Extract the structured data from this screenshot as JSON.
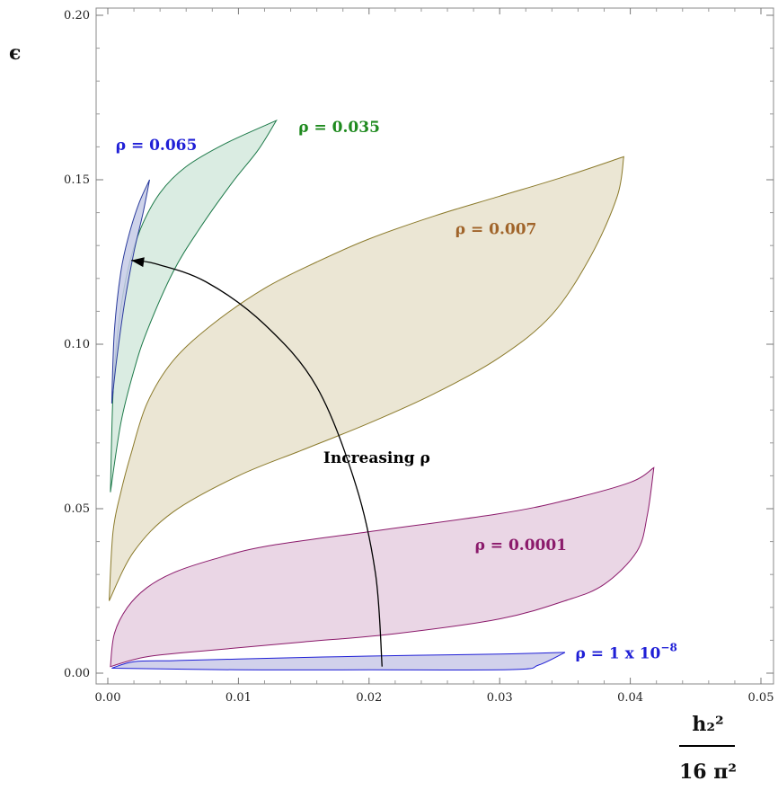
{
  "chart_data": {
    "type": "area",
    "xlim": [
      0,
      0.05
    ],
    "ylim": [
      0,
      0.2
    ],
    "x_ticks": [
      "0.00",
      "0.01",
      "0.02",
      "0.03",
      "0.04",
      "0.05"
    ],
    "y_ticks": [
      "0.00",
      "0.05",
      "0.10",
      "0.15",
      "0.20"
    ],
    "ylabel": "ϵ",
    "xlabel_num": "h₂²",
    "xlabel_den": "16 π²",
    "grid": false,
    "series": [
      {
        "name": "ρ = 1 x 10⁻⁸",
        "color": "#1f1fd6",
        "fill": "#c9c9e8",
        "upper": [
          [
            0.0003,
            0.0015
          ],
          [
            0.002,
            0.0035
          ],
          [
            0.005,
            0.0038
          ],
          [
            0.01,
            0.0043
          ],
          [
            0.02,
            0.0052
          ],
          [
            0.03,
            0.0058
          ],
          [
            0.035,
            0.0063
          ]
        ],
        "lower": [
          [
            0.0003,
            0.0015
          ],
          [
            0.01,
            0.001
          ],
          [
            0.02,
            0.001
          ],
          [
            0.031,
            0.0011
          ],
          [
            0.033,
            0.0025
          ],
          [
            0.035,
            0.0063
          ]
        ]
      },
      {
        "name": "ρ = 0.0001",
        "color": "#8b1a6b",
        "fill": "#e6cfe0",
        "upper": [
          [
            0.0002,
            0.002
          ],
          [
            0.0005,
            0.012
          ],
          [
            0.0015,
            0.02
          ],
          [
            0.003,
            0.026
          ],
          [
            0.005,
            0.0305
          ],
          [
            0.008,
            0.0345
          ],
          [
            0.012,
            0.0385
          ],
          [
            0.02,
            0.043
          ],
          [
            0.03,
            0.0485
          ],
          [
            0.035,
            0.0525
          ],
          [
            0.04,
            0.058
          ],
          [
            0.0418,
            0.0625
          ]
        ],
        "lower": [
          [
            0.0002,
            0.002
          ],
          [
            0.003,
            0.005
          ],
          [
            0.008,
            0.007
          ],
          [
            0.015,
            0.0095
          ],
          [
            0.022,
            0.012
          ],
          [
            0.03,
            0.0165
          ],
          [
            0.035,
            0.022
          ],
          [
            0.038,
            0.027
          ],
          [
            0.0405,
            0.037
          ],
          [
            0.0413,
            0.048
          ],
          [
            0.0418,
            0.0625
          ]
        ]
      },
      {
        "name": "ρ = 0.007",
        "color": "#8b7a2b",
        "fill": "#e8e2cc",
        "upper": [
          [
            0.0001,
            0.022
          ],
          [
            0.0004,
            0.043
          ],
          [
            0.001,
            0.055
          ],
          [
            0.0018,
            0.067
          ],
          [
            0.003,
            0.082
          ],
          [
            0.005,
            0.095
          ],
          [
            0.008,
            0.106
          ],
          [
            0.012,
            0.117
          ],
          [
            0.016,
            0.125
          ],
          [
            0.02,
            0.132
          ],
          [
            0.025,
            0.139
          ],
          [
            0.03,
            0.145
          ],
          [
            0.035,
            0.151
          ],
          [
            0.0395,
            0.157
          ]
        ],
        "lower": [
          [
            0.0001,
            0.022
          ],
          [
            0.002,
            0.037
          ],
          [
            0.005,
            0.049
          ],
          [
            0.01,
            0.06
          ],
          [
            0.015,
            0.068
          ],
          [
            0.02,
            0.076
          ],
          [
            0.025,
            0.085
          ],
          [
            0.03,
            0.096
          ],
          [
            0.034,
            0.109
          ],
          [
            0.037,
            0.127
          ],
          [
            0.039,
            0.145
          ],
          [
            0.0395,
            0.157
          ]
        ]
      },
      {
        "name": "ρ = 0.035",
        "color": "#1e7a4a",
        "fill": "#d3e9dd",
        "upper": [
          [
            0.0002,
            0.055
          ],
          [
            0.0004,
            0.085
          ],
          [
            0.0008,
            0.105
          ],
          [
            0.0015,
            0.122
          ],
          [
            0.0025,
            0.135
          ],
          [
            0.004,
            0.146
          ],
          [
            0.006,
            0.154
          ],
          [
            0.009,
            0.161
          ],
          [
            0.0129,
            0.168
          ]
        ],
        "lower": [
          [
            0.0002,
            0.055
          ],
          [
            0.001,
            0.076
          ],
          [
            0.002,
            0.092
          ],
          [
            0.003,
            0.104
          ],
          [
            0.005,
            0.122
          ],
          [
            0.007,
            0.135
          ],
          [
            0.0095,
            0.149
          ],
          [
            0.0115,
            0.159
          ],
          [
            0.0129,
            0.168
          ]
        ]
      },
      {
        "name": "ρ = 0.065",
        "color": "#2a3b9c",
        "fill": "#c6cbe6",
        "upper": [
          [
            0.0003,
            0.082
          ],
          [
            0.0005,
            0.104
          ],
          [
            0.001,
            0.122
          ],
          [
            0.0016,
            0.133
          ],
          [
            0.0024,
            0.143
          ],
          [
            0.0032,
            0.15
          ]
        ],
        "lower": [
          [
            0.0003,
            0.082
          ],
          [
            0.0007,
            0.096
          ],
          [
            0.0013,
            0.113
          ],
          [
            0.002,
            0.128
          ],
          [
            0.0027,
            0.14
          ],
          [
            0.0032,
            0.15
          ]
        ]
      }
    ],
    "series_labels": [
      {
        "text": "ρ = 1 x 10",
        "sup": "−8",
        "color": "#1f1fd6",
        "x": 0.0358,
        "y": 0.0045
      },
      {
        "text": "ρ = 0.0001",
        "sup": "",
        "color": "#8b1a6b",
        "x": 0.0281,
        "y": 0.0375
      },
      {
        "text": "ρ = 0.007",
        "sup": "",
        "color": "#a0642a",
        "x": 0.0266,
        "y": 0.1335
      },
      {
        "text": "ρ = 0.035",
        "sup": "",
        "color": "#1f8a1f",
        "x": 0.0146,
        "y": 0.1645
      },
      {
        "text": "ρ = 0.065",
        "sup": "",
        "color": "#1f1fd6",
        "x": 0.0006,
        "y": 0.159
      }
    ],
    "annotation": {
      "text": "Increasing ρ",
      "x": 0.0165,
      "y": 0.064,
      "arrow": [
        [
          0.021,
          0.002
        ],
        [
          0.0205,
          0.03
        ],
        [
          0.019,
          0.057
        ],
        [
          0.016,
          0.087
        ],
        [
          0.012,
          0.106
        ],
        [
          0.0075,
          0.119
        ],
        [
          0.0036,
          0.1245
        ],
        [
          0.0018,
          0.1255
        ]
      ]
    }
  }
}
